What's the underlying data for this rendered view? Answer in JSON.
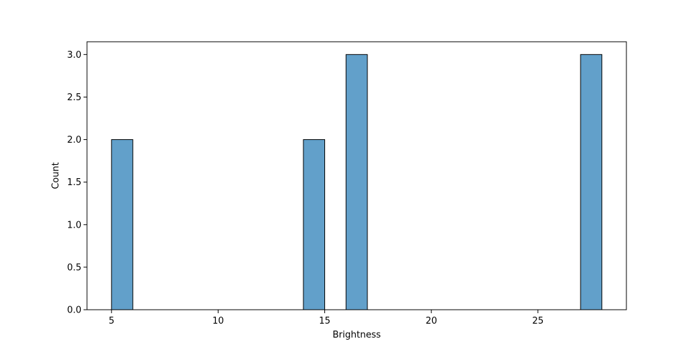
{
  "chart_data": {
    "type": "bar",
    "subtype": "histogram",
    "title": "",
    "xlabel": "Brightness",
    "ylabel": "Count",
    "bins": [
      {
        "start": 5,
        "end": 6,
        "count": 2
      },
      {
        "start": 14,
        "end": 15,
        "count": 2
      },
      {
        "start": 16,
        "end": 17,
        "count": 3
      },
      {
        "start": 27,
        "end": 28,
        "count": 3
      }
    ],
    "xlim": [
      3.85,
      29.15
    ],
    "ylim": [
      0,
      3.15
    ],
    "xticks": [
      5,
      10,
      15,
      20,
      25
    ],
    "yticks": [
      0.0,
      0.5,
      1.0,
      1.5,
      2.0,
      2.5,
      3.0
    ],
    "xtick_labels": [
      "5",
      "10",
      "15",
      "20",
      "25"
    ],
    "ytick_labels": [
      "0.0",
      "0.5",
      "1.0",
      "1.5",
      "2.0",
      "2.5",
      "3.0"
    ],
    "bar_color": "#1f77b4",
    "bar_opacity": 0.7,
    "edge_color": "#000000",
    "grid": false,
    "legend": "none"
  }
}
